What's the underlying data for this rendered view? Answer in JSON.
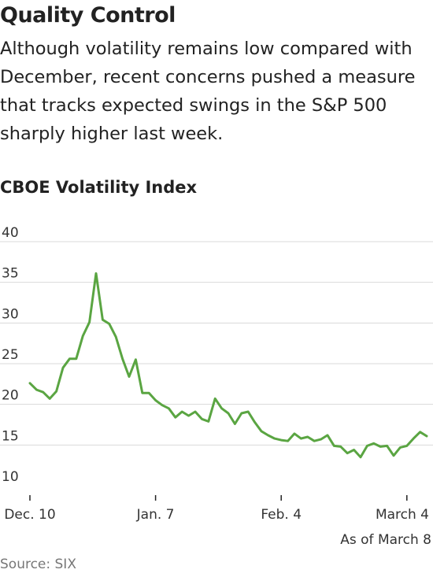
{
  "headline": "Quality Control",
  "subtitle": "Although volatility remains low compared with December, recent concerns pushed a measure that tracks expected swings in the S&P 500 sharply higher last week.",
  "note": "As of March 8",
  "source": "Source: SIX",
  "colors": {
    "line": "#5aa542",
    "grid": "#d9d9d9",
    "axis": "#222222"
  },
  "chart_data": {
    "type": "line",
    "title": "CBOE Volatility Index",
    "xlabel": "",
    "ylabel": "",
    "ylim": [
      10,
      40
    ],
    "yticks": [
      10,
      15,
      20,
      25,
      30,
      35,
      40
    ],
    "xticks": [
      {
        "label": "Dec. 10",
        "index": 0
      },
      {
        "label": "Jan. 7",
        "index": 19
      },
      {
        "label": "Feb. 4",
        "index": 38
      },
      {
        "label": "March 4",
        "index": 57
      }
    ],
    "grid": true,
    "series": [
      {
        "values": [
          22.6,
          21.8,
          21.5,
          20.7,
          21.6,
          24.5,
          25.6,
          25.6,
          28.4,
          30.1,
          36.1,
          30.4,
          29.9,
          28.3,
          25.6,
          23.4,
          25.5,
          21.4,
          21.4,
          20.5,
          19.9,
          19.5,
          18.4,
          19.1,
          18.6,
          19.1,
          18.2,
          17.9,
          20.7,
          19.5,
          18.9,
          17.6,
          18.9,
          19.1,
          17.8,
          16.7,
          16.2,
          15.8,
          15.6,
          15.5,
          16.4,
          15.8,
          16.0,
          15.5,
          15.7,
          16.2,
          14.9,
          14.8,
          14.0,
          14.4,
          13.5,
          14.9,
          15.2,
          14.8,
          14.9,
          13.7,
          14.7,
          14.9,
          15.8,
          16.6,
          16.1
        ]
      }
    ]
  }
}
